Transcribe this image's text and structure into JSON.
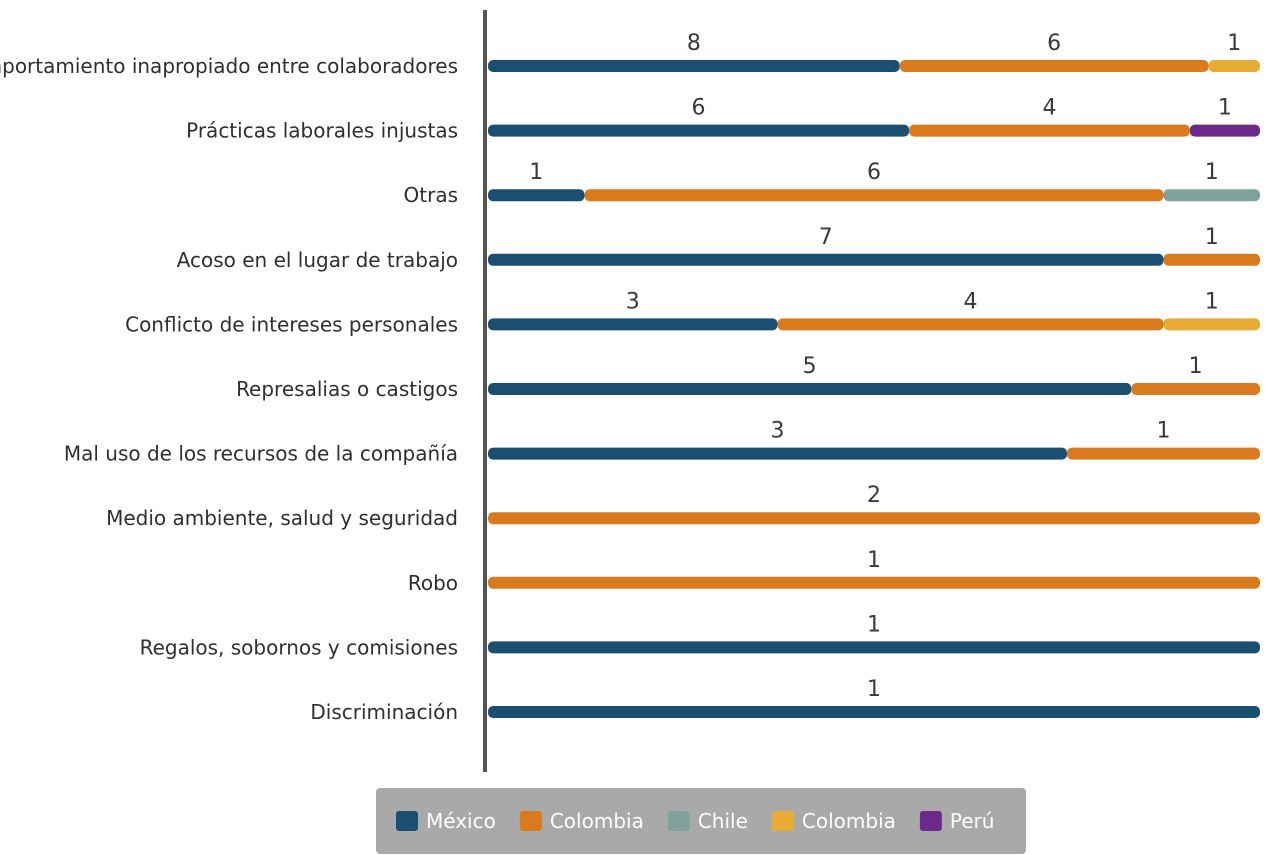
{
  "chart_data": {
    "type": "bar",
    "stacked": true,
    "orientation": "horizontal",
    "normalized": true,
    "grid": false,
    "legend_position": "bottom",
    "categories": [
      "Comportamiento inapropiado entre colaboradores",
      "Prácticas laborales injustas",
      "Otras",
      "Acoso en el lugar de trabajo",
      "Conflicto de intereses personales",
      "Represalias o castigos",
      "Mal uso de los recursos de la compañía",
      "Medio ambiente, salud y seguridad",
      "Robo",
      "Regalos, sobornos y comisiones",
      "Discriminación"
    ],
    "series": [
      {
        "name": "México",
        "color": "#1b4f72",
        "values": [
          8,
          6,
          1,
          7,
          3,
          5,
          3,
          null,
          null,
          1,
          1
        ]
      },
      {
        "name": "Colombia",
        "color": "#d97a1c",
        "values": [
          6,
          4,
          6,
          1,
          4,
          1,
          1,
          2,
          1,
          null,
          null
        ]
      },
      {
        "name": "Chile",
        "color": "#7fa39a",
        "values": [
          null,
          null,
          1,
          null,
          null,
          null,
          null,
          null,
          null,
          null,
          null
        ]
      },
      {
        "name": "Colombia",
        "color": "#e8ac35",
        "values": [
          1,
          null,
          null,
          null,
          1,
          null,
          null,
          null,
          null,
          null,
          null
        ]
      },
      {
        "name": "Perú",
        "color": "#6b2a8a",
        "values": [
          null,
          1,
          null,
          null,
          null,
          null,
          null,
          null,
          null,
          null,
          null
        ]
      }
    ]
  },
  "colors": {
    "axis": "#555555",
    "legend_bg": "#a9a9a9"
  }
}
